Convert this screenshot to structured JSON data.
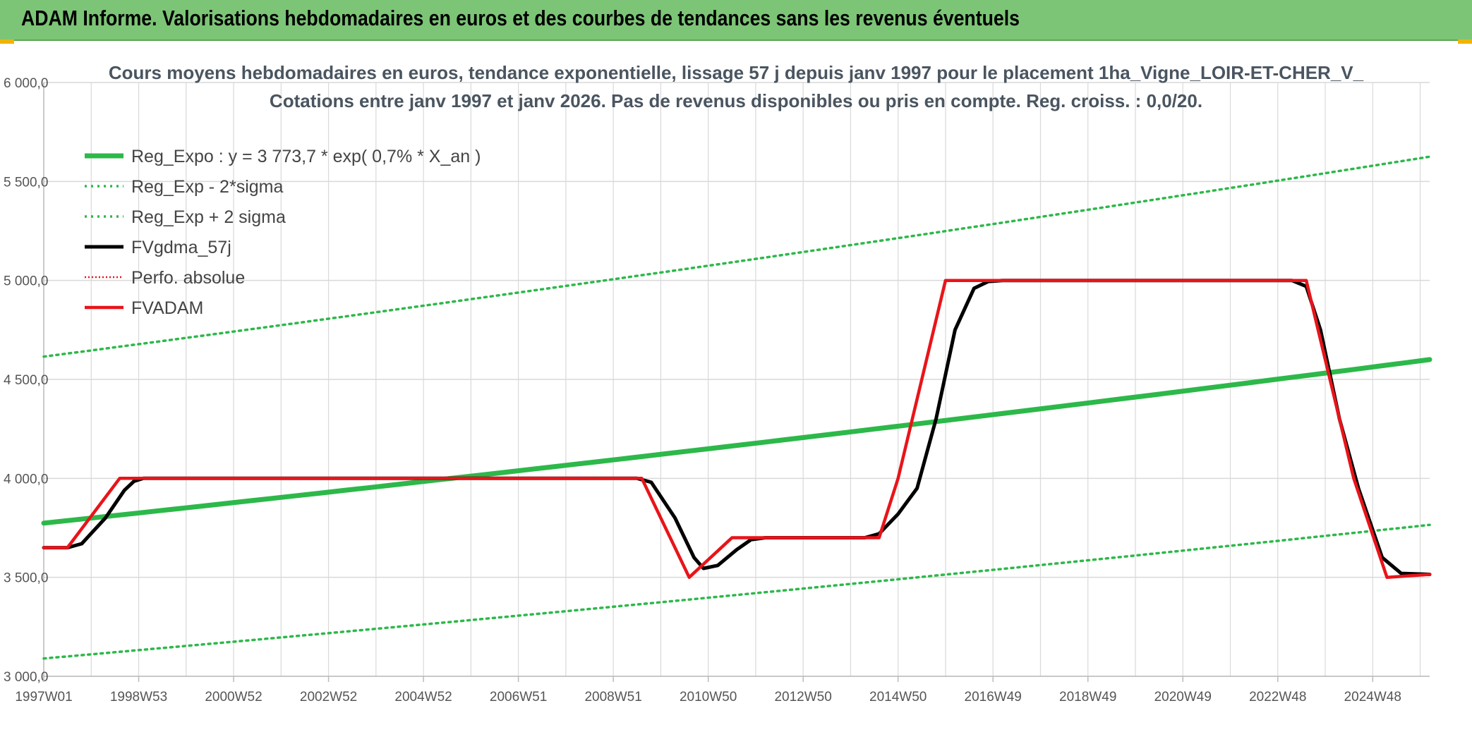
{
  "header": {
    "title": "ADAM Informe. Valorisations hebdomadaires en euros et des courbes de tendances sans les revenus éventuels"
  },
  "colors": {
    "banner": "#7cc576",
    "trend": "#2db84a",
    "sigma": "#2db84a",
    "fvgdma": "#000000",
    "perfo": "#e8141a",
    "fvadam": "#e8141a",
    "grid": "#d9d9d9"
  },
  "chart_data": {
    "type": "line",
    "title": "Cours moyens hebdomadaires en euros, tendance exponentielle, lissage 57 j depuis janv 1997 pour le placement 1ha_Vigne_LOIR-ET-CHER_V_",
    "subtitle": "Cotations entre janv 1997 et janv 2026. Pas de revenus disponibles ou pris en compte. Reg. croiss. : 0,0/20.",
    "xlabel": "",
    "ylabel": "",
    "x_range": [
      1997.0,
      2026.2
    ],
    "ylim": [
      3000,
      6000
    ],
    "y_ticks": [
      {
        "value": 3000,
        "label": "3 000,0"
      },
      {
        "value": 3500,
        "label": "3 500,0"
      },
      {
        "value": 4000,
        "label": "4 000,0"
      },
      {
        "value": 4500,
        "label": "4 500,0"
      },
      {
        "value": 5000,
        "label": "5 000,0"
      },
      {
        "value": 5500,
        "label": "5 500,0"
      },
      {
        "value": 6000,
        "label": "6 000,0"
      }
    ],
    "x_ticks": [
      {
        "t": 1997.0,
        "label": "1997W01"
      },
      {
        "t": 1999.0,
        "label": "1998W53"
      },
      {
        "t": 2001.0,
        "label": "2000W52"
      },
      {
        "t": 2003.0,
        "label": "2002W52"
      },
      {
        "t": 2005.0,
        "label": "2004W52"
      },
      {
        "t": 2007.0,
        "label": "2006W51"
      },
      {
        "t": 2009.0,
        "label": "2008W51"
      },
      {
        "t": 2011.0,
        "label": "2010W50"
      },
      {
        "t": 2013.0,
        "label": "2012W50"
      },
      {
        "t": 2015.0,
        "label": "2014W50"
      },
      {
        "t": 2017.0,
        "label": "2016W49"
      },
      {
        "t": 2019.0,
        "label": "2018W49"
      },
      {
        "t": 2021.0,
        "label": "2020W49"
      },
      {
        "t": 2023.0,
        "label": "2022W48"
      },
      {
        "t": 2025.0,
        "label": "2024W48"
      }
    ],
    "grid": true,
    "legend_position": "top-left",
    "series": [
      {
        "name": "Reg_Expo : y = 3 773,7 * exp( 0,7% *  X_an )",
        "style": "trend",
        "x": [
          1997.0,
          2026.2
        ],
        "y": [
          3773.7,
          4600
        ]
      },
      {
        "name": "Reg_Exp - 2*sigma",
        "style": "sigma",
        "x": [
          1997.0,
          2026.2
        ],
        "y": [
          3090,
          3765
        ]
      },
      {
        "name": "Reg_Exp + 2 sigma",
        "style": "sigma",
        "x": [
          1997.0,
          2026.2
        ],
        "y": [
          4615,
          5625
        ]
      },
      {
        "name": "FVgdma_57j",
        "style": "fvgdma",
        "x": [
          1997.0,
          1997.5,
          1997.8,
          1998.3,
          1998.7,
          1998.9,
          1999.1,
          2009.5,
          2009.8,
          2010.3,
          2010.7,
          2010.9,
          2011.2,
          2011.6,
          2011.9,
          2012.2,
          2014.3,
          2014.6,
          2015.0,
          2015.4,
          2015.8,
          2016.2,
          2016.6,
          2016.9,
          2017.2,
          2023.3,
          2023.6,
          2023.9,
          2024.3,
          2024.7,
          2025.2,
          2025.6,
          2026.2
        ],
        "y": [
          3650,
          3650,
          3670,
          3800,
          3940,
          3985,
          4000,
          4000,
          3980,
          3800,
          3600,
          3545,
          3560,
          3640,
          3690,
          3700,
          3700,
          3720,
          3820,
          3950,
          4300,
          4750,
          4960,
          4995,
          5000,
          5000,
          4970,
          4750,
          4300,
          3950,
          3600,
          3520,
          3515
        ]
      },
      {
        "name": "Perfo. absolue",
        "style": "perfo",
        "x": [],
        "y": []
      },
      {
        "name": "FVADAM",
        "style": "fvadam",
        "x": [
          1997.0,
          1997.5,
          1998.6,
          2009.6,
          2010.6,
          2011.5,
          2014.6,
          2015.0,
          2016.0,
          2016.1,
          2023.6,
          2024.6,
          2025.3,
          2026.2
        ],
        "y": [
          3650,
          3650,
          4000,
          4000,
          3500,
          3700,
          3700,
          4000,
          5000,
          5000,
          5000,
          4000,
          3500,
          3515
        ]
      }
    ]
  }
}
